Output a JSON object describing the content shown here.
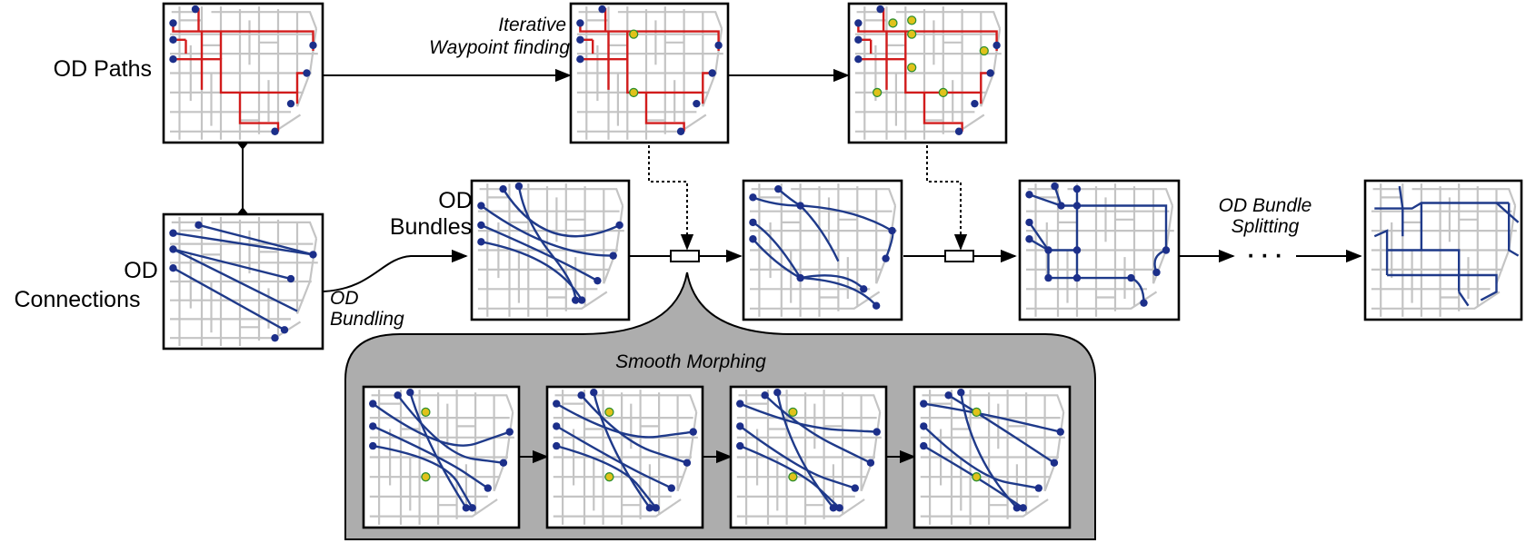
{
  "labels": {
    "od_paths": "OD Paths",
    "od_connections_1": "OD",
    "od_connections_2": "Connections",
    "od_bundles_1": "OD",
    "od_bundles_2": "Bundles",
    "waypoint_1": "Iterative",
    "waypoint_2": "Waypoint finding",
    "od_bundling_1": "OD",
    "od_bundling_2": "Bundling",
    "splitting_1": "OD Bundle",
    "splitting_2": "Splitting",
    "ellipsis": "· · ·",
    "smooth_morphing": "Smooth Morphing"
  },
  "colors": {
    "street": "#c4c4c4",
    "od_path": "#d21c1c",
    "od_line": "#1f3a8a",
    "node": "#1c2f8a",
    "waypoint": "#e0c21a",
    "waypoint_ring": "#2f8f2f",
    "morph_panel": "#adadad"
  }
}
